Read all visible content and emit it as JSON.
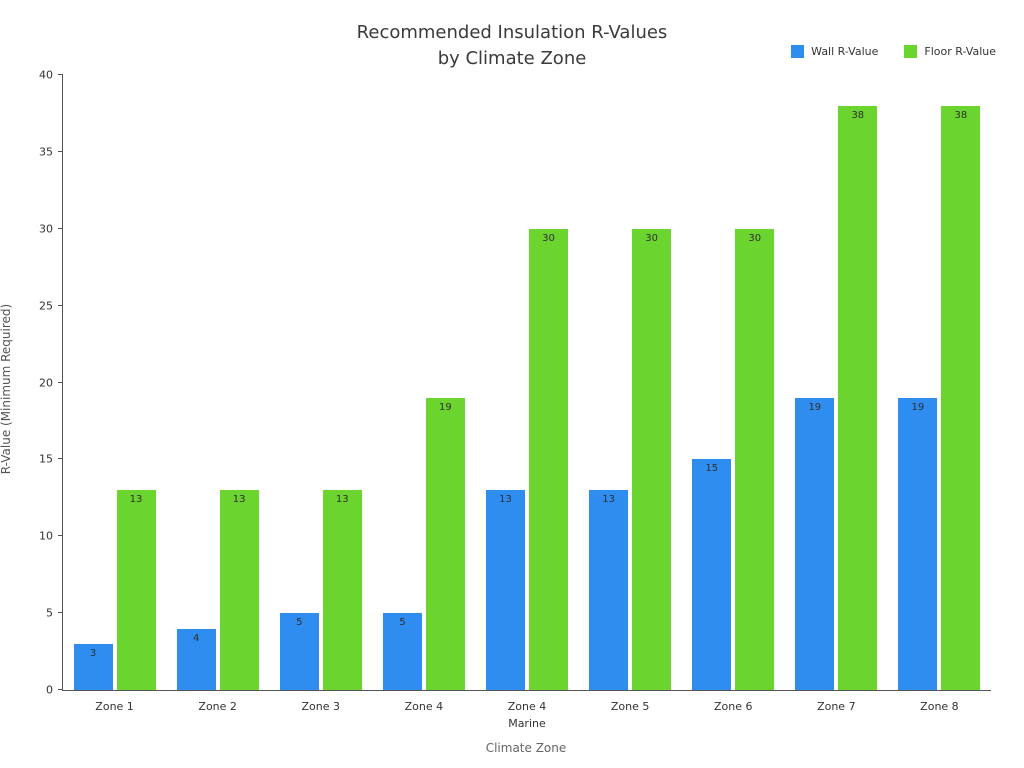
{
  "chart_data": {
    "type": "bar",
    "title_line1": "Recommended Insulation R-Values",
    "title_line2": "by Climate Zone",
    "categories": [
      "Zone 1",
      "Zone 2",
      "Zone 3",
      "Zone 4",
      "Zone 4\nMarine",
      "Zone 5",
      "Zone 6",
      "Zone 7",
      "Zone 8"
    ],
    "series": [
      {
        "name": "Wall R-Value",
        "color": "#2f8def",
        "values": [
          3,
          4,
          5,
          5,
          13,
          13,
          15,
          19,
          19
        ]
      },
      {
        "name": "Floor R-Value",
        "color": "#6bd42e",
        "values": [
          13,
          13,
          13,
          19,
          30,
          30,
          30,
          38,
          38
        ]
      }
    ],
    "xlabel": "Climate Zone",
    "ylabel": "R-Value (Minimum Required)",
    "ylim": [
      0,
      40
    ],
    "ytick_step": 5,
    "legend_position": "top-right",
    "grid": false,
    "bar_label_color": "#2e2e2e"
  }
}
